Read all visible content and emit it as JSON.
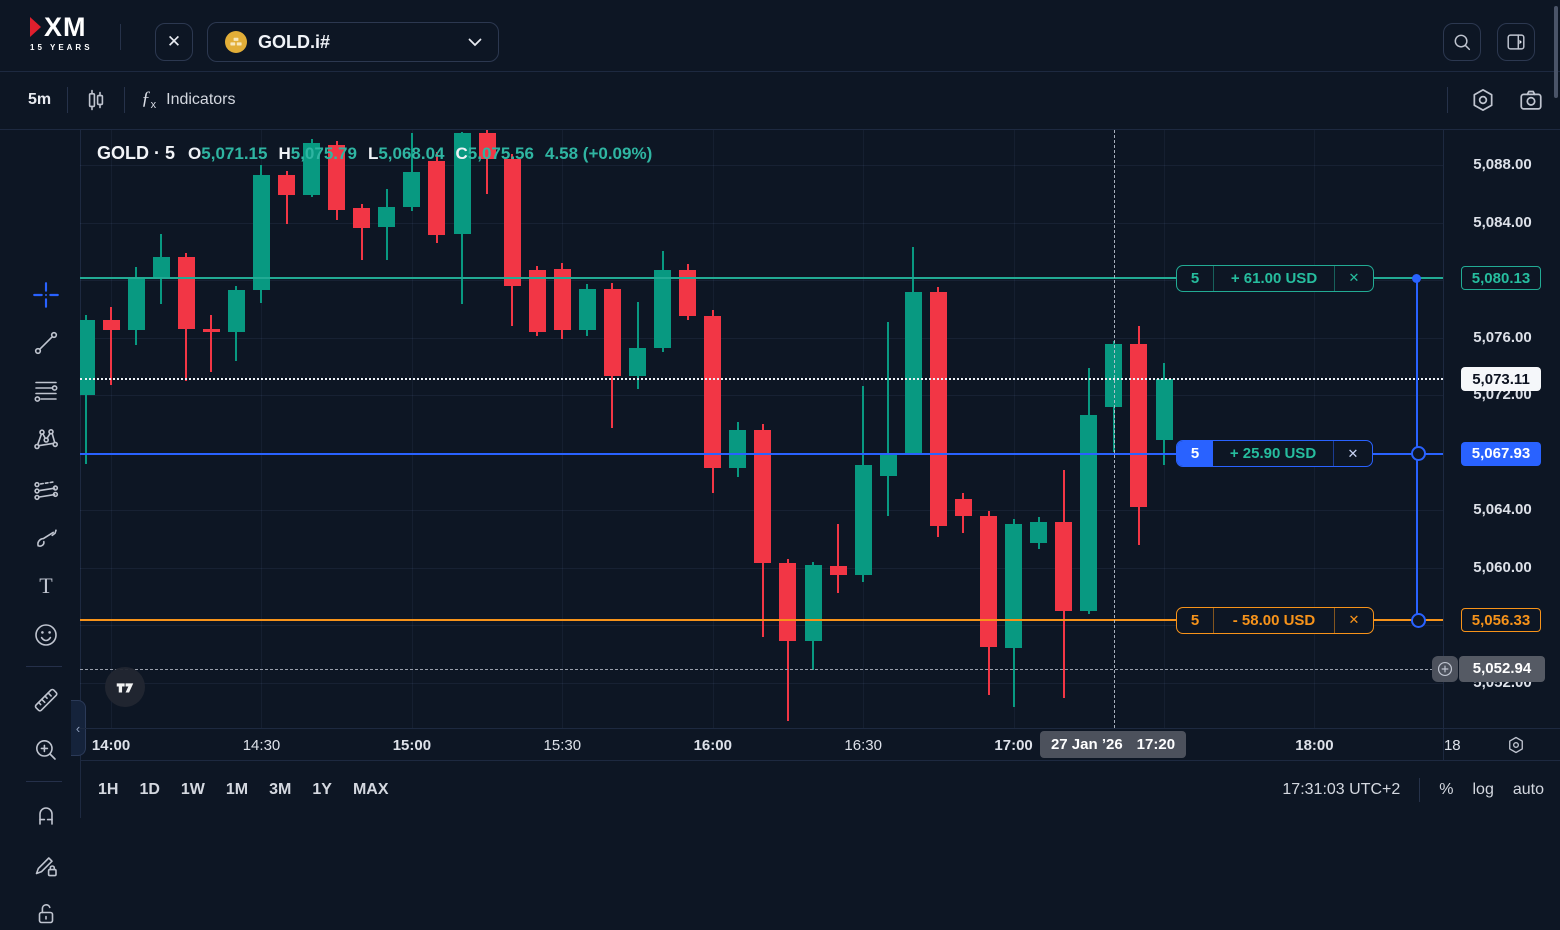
{
  "topbar": {
    "logo_text": "XM",
    "logo_sub": "15 YEARS",
    "close_glyph": "✕",
    "symbol": "GOLD.i#"
  },
  "toolbar": {
    "interval": "5m",
    "fx_glyph": "ƒ",
    "fx_sub": "x",
    "indicators_label": "Indicators"
  },
  "icons": [
    "xm-logo",
    "close-icon",
    "gold-coin-icon",
    "chevron-down-icon",
    "search-icon",
    "panel-toggle-icon",
    "candles-icon",
    "fx-icon",
    "settings-hexagon-icon",
    "camera-icon",
    "crosshair-icon",
    "trend-line-icon",
    "fib-lines-icon",
    "xabcd-pattern-icon",
    "forecast-icon",
    "brush-icon",
    "text-tool-icon",
    "emoji-icon",
    "ruler-icon",
    "zoom-in-icon",
    "magnet-icon",
    "draw-lock-icon",
    "lock-icon",
    "collapse-chevron-icon",
    "tradingview-logo",
    "plus-circle-icon",
    "axis-settings-icon"
  ],
  "legend": {
    "symbol": "GOLD",
    "sep": "·",
    "interval": "5",
    "o_label": "O",
    "o": "5,071.15",
    "h_label": "H",
    "h": "5,075.79",
    "l_label": "L",
    "l": "5,068.04",
    "c_label": "C",
    "c": "5,075.56",
    "change": "4.58 (+0.09%)"
  },
  "watermark": "TV",
  "chart_data": {
    "type": "candlestick",
    "symbol": "GOLD",
    "interval": "5m",
    "close_glyph": "✕",
    "colors": {
      "up": "#089981",
      "down": "#f23645",
      "tp": "#22ab94",
      "entry": "#2962ff",
      "sl": "#f7931a",
      "grid": "rgba(150,180,255,0.07)",
      "bg": "#0d1624"
    },
    "candles": [
      [
        "13:55",
        5072.0,
        5077.6,
        5067.2,
        5077.2
      ],
      [
        "14:00",
        5077.2,
        5078.1,
        5072.7,
        5076.5
      ],
      [
        "14:05",
        5076.5,
        5080.9,
        5075.5,
        5080.1
      ],
      [
        "14:10",
        5080.1,
        5083.2,
        5078.3,
        5081.6
      ],
      [
        "14:15",
        5081.6,
        5081.9,
        5073.0,
        5076.6
      ],
      [
        "14:20",
        5076.6,
        5077.6,
        5073.6,
        5076.4
      ],
      [
        "14:25",
        5076.4,
        5079.6,
        5074.4,
        5079.3
      ],
      [
        "14:30",
        5079.3,
        5088.0,
        5078.4,
        5087.3
      ],
      [
        "14:35",
        5087.3,
        5087.6,
        5083.9,
        5085.9
      ],
      [
        "14:40",
        5085.9,
        5089.8,
        5085.8,
        5089.5
      ],
      [
        "14:45",
        5089.4,
        5089.7,
        5084.2,
        5084.9
      ],
      [
        "14:50",
        5085.0,
        5085.3,
        5081.4,
        5083.6
      ],
      [
        "14:55",
        5083.7,
        5086.3,
        5081.4,
        5085.1
      ],
      [
        "15:00",
        5085.1,
        5090.2,
        5084.8,
        5087.5
      ],
      [
        "15:05",
        5088.3,
        5088.9,
        5082.6,
        5083.1
      ],
      [
        "15:10",
        5083.2,
        5090.3,
        5078.3,
        5090.2
      ],
      [
        "15:15",
        5090.2,
        5090.7,
        5086.0,
        5088.4
      ],
      [
        "15:20",
        5088.4,
        5088.8,
        5076.8,
        5079.6
      ],
      [
        "15:25",
        5080.7,
        5081.0,
        5076.1,
        5076.4
      ],
      [
        "15:30",
        5080.8,
        5081.2,
        5075.9,
        5076.5
      ],
      [
        "15:35",
        5076.5,
        5079.7,
        5076.1,
        5079.4
      ],
      [
        "15:40",
        5079.4,
        5079.8,
        5069.7,
        5073.3
      ],
      [
        "15:45",
        5073.3,
        5078.5,
        5072.4,
        5075.3
      ],
      [
        "15:50",
        5075.3,
        5082.0,
        5075.0,
        5080.7
      ],
      [
        "15:55",
        5080.7,
        5081.1,
        5077.2,
        5077.5
      ],
      [
        "16:00",
        5077.5,
        5077.9,
        5065.2,
        5066.9
      ],
      [
        "16:05",
        5066.9,
        5070.1,
        5066.3,
        5069.6
      ],
      [
        "16:10",
        5069.6,
        5070.0,
        5055.2,
        5060.3
      ],
      [
        "16:15",
        5060.3,
        5060.6,
        5049.3,
        5054.9
      ],
      [
        "16:20",
        5054.9,
        5060.4,
        5052.9,
        5060.2
      ],
      [
        "16:25",
        5060.1,
        5063.0,
        5058.2,
        5059.5
      ],
      [
        "16:30",
        5059.5,
        5072.6,
        5059.0,
        5067.1
      ],
      [
        "16:35",
        5066.4,
        5077.1,
        5063.6,
        5068.0
      ],
      [
        "16:40",
        5068.0,
        5082.3,
        5067.8,
        5079.2
      ],
      [
        "16:45",
        5079.2,
        5079.5,
        5062.1,
        5062.9
      ],
      [
        "16:50",
        5064.8,
        5065.2,
        5062.4,
        5063.6
      ],
      [
        "16:55",
        5063.6,
        5063.9,
        5051.1,
        5054.5
      ],
      [
        "17:00",
        5054.4,
        5063.4,
        5050.3,
        5063.0
      ],
      [
        "17:05",
        5061.7,
        5063.5,
        5061.3,
        5063.2
      ],
      [
        "17:10",
        5063.2,
        5066.8,
        5050.9,
        5057.0
      ],
      [
        "17:15",
        5057.0,
        5073.9,
        5056.8,
        5070.6
      ],
      [
        "17:20",
        5071.15,
        5075.79,
        5068.04,
        5075.56
      ],
      [
        "17:25",
        5075.56,
        5076.8,
        5061.6,
        5064.2
      ],
      [
        "17:30",
        5068.9,
        5074.2,
        5067.1,
        5073.11
      ]
    ],
    "y_axis": {
      "ticks": [
        {
          "label": "5,088.00",
          "price": 5088
        },
        {
          "label": "5,084.00",
          "price": 5084
        },
        {
          "label": "5,076.00",
          "price": 5076
        },
        {
          "label": "5,072.00",
          "price": 5072
        },
        {
          "label": "5,064.00",
          "price": 5064
        },
        {
          "label": "5,060.00",
          "price": 5060
        },
        {
          "label": "5,052.00",
          "price": 5052
        }
      ],
      "grid_prices": [
        5088,
        5084,
        5080,
        5076,
        5072,
        5068,
        5064,
        5060,
        5056,
        5052
      ]
    },
    "x_axis": {
      "ticks": [
        {
          "label": "14:00",
          "bold": true,
          "i": 1
        },
        {
          "label": "14:30",
          "bold": false,
          "i": 7
        },
        {
          "label": "15:00",
          "bold": true,
          "i": 13
        },
        {
          "label": "15:30",
          "bold": false,
          "i": 19
        },
        {
          "label": "16:00",
          "bold": true,
          "i": 25
        },
        {
          "label": "16:30",
          "bold": false,
          "i": 31
        },
        {
          "label": "17:00",
          "bold": true,
          "i": 37
        },
        {
          "label": "18:00",
          "bold": true,
          "i": 49
        },
        {
          "label": "18",
          "bold": false,
          "i": 54.5
        }
      ],
      "grid_i": [
        1,
        7,
        13,
        19,
        25,
        31,
        37,
        43,
        49
      ]
    },
    "levels": [
      {
        "kind": "take-profit",
        "price": 5080.13,
        "axis_label": "5,080.13",
        "qty": "5",
        "pnl": "+ 61.00 USD",
        "color": "#22ab94",
        "marker": "dot"
      },
      {
        "kind": "entry",
        "price": 5067.93,
        "axis_label": "5,067.93",
        "qty": "5",
        "pnl": "+ 25.90 USD",
        "color": "#2962ff",
        "marker": "ring"
      },
      {
        "kind": "stop-loss",
        "price": 5056.33,
        "axis_label": "5,056.33",
        "qty": "5",
        "pnl": "- 58.00 USD",
        "color": "#f7931a",
        "marker": "ring"
      }
    ],
    "current_price": {
      "price": 5073.11,
      "label": "5,073.11"
    },
    "crosshair": {
      "price": 5052.94,
      "price_label": "5,052.94",
      "i": 41,
      "date_label": "27 Jan ’26",
      "time_label": "17:20"
    }
  },
  "footer": {
    "ranges": [
      "1H",
      "1D",
      "1W",
      "1M",
      "3M",
      "1Y",
      "MAX"
    ],
    "clock": "17:31:03 UTC+2",
    "percent": "%",
    "log": "log",
    "auto": "auto"
  }
}
